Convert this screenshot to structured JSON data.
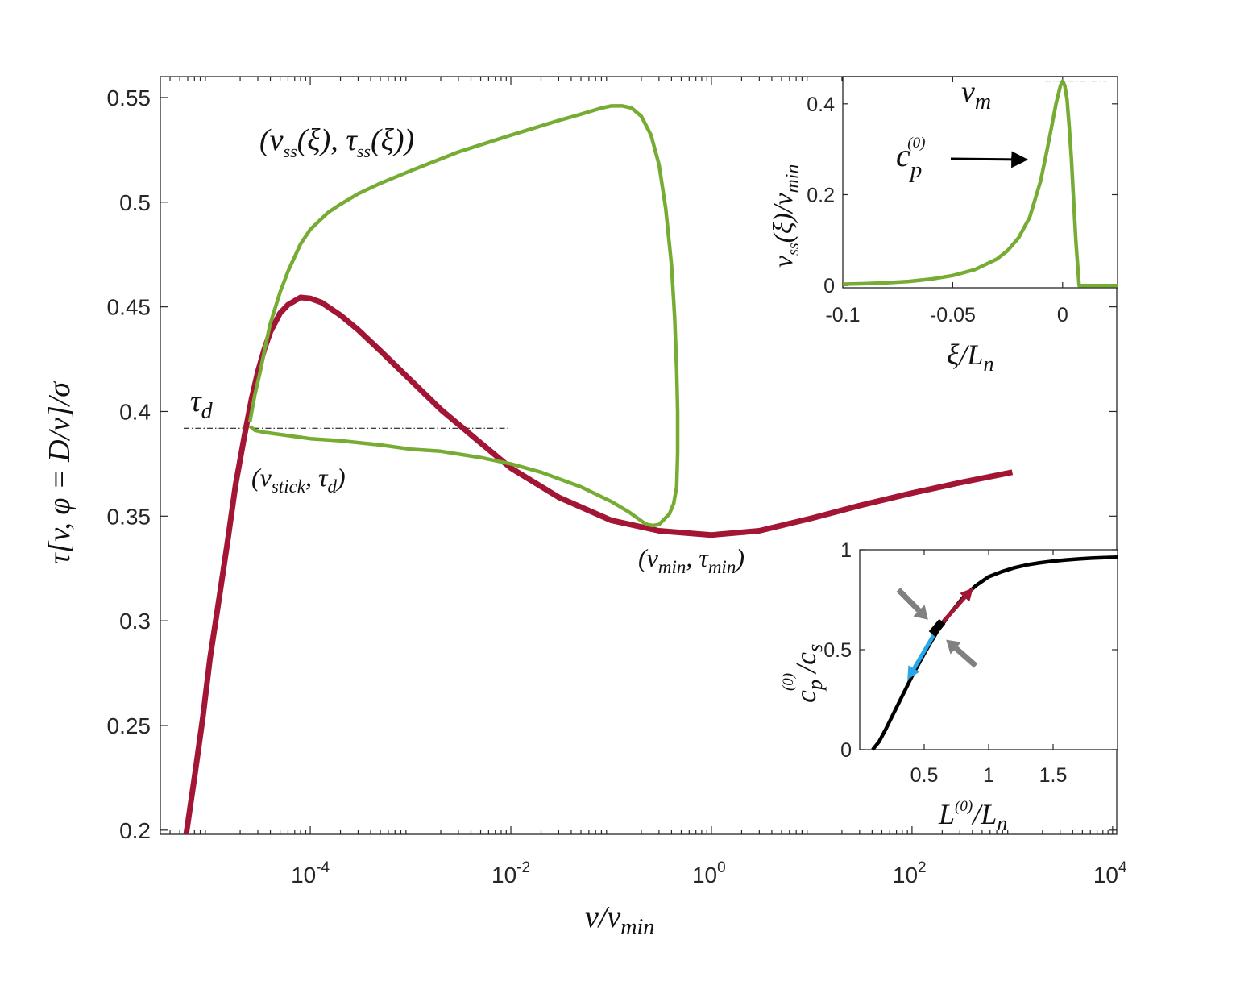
{
  "chart_data": [
    {
      "type": "line",
      "xscale": "log",
      "xlim": [
        3.2e-06,
        11000
      ],
      "ylim": [
        0.198,
        0.56
      ],
      "xlabel": "v/v_min",
      "ylabel": "τ[v, φ = D/v]/σ",
      "xticks": [
        0.0001,
        0.01,
        1,
        100,
        10000
      ],
      "xtick_labels": [
        {
          "base": "10",
          "exp": "-4"
        },
        {
          "base": "10",
          "exp": "-2"
        },
        {
          "base": "10",
          "exp": "0"
        },
        {
          "base": "10",
          "exp": "2"
        },
        {
          "base": "10",
          "exp": "4"
        }
      ],
      "yticks": [
        0.2,
        0.25,
        0.3,
        0.35,
        0.4,
        0.45,
        0.5,
        0.55
      ],
      "ytick_labels": [
        "0.2",
        "0.25",
        "0.3",
        "0.35",
        "0.4",
        "0.45",
        "0.5",
        "0.55"
      ],
      "grid": false,
      "series": [
        {
          "color": "#a31535",
          "x": [
            5.8e-06,
            7e-06,
            8.5e-06,
            1e-05,
            1.2e-05,
            1.5e-05,
            1.8e-05,
            2.2e-05,
            2.6e-05,
            3e-05,
            3.5e-05,
            4e-05,
            5e-05,
            6e-05,
            8e-05,
            0.0001,
            0.00013,
            0.0002,
            0.0003,
            0.0005,
            0.001,
            0.002,
            0.005,
            0.01,
            0.03,
            0.1,
            0.3,
            1,
            3,
            10,
            30,
            100,
            300,
            1000
          ],
          "y": [
            0.198,
            0.225,
            0.254,
            0.282,
            0.307,
            0.338,
            0.365,
            0.388,
            0.406,
            0.419,
            0.43,
            0.438,
            0.447,
            0.451,
            0.4545,
            0.454,
            0.452,
            0.446,
            0.439,
            0.429,
            0.415,
            0.401,
            0.385,
            0.373,
            0.359,
            0.348,
            0.343,
            0.341,
            0.343,
            0.349,
            0.355,
            0.361,
            0.366,
            0.371
          ]
        },
        {
          "color": "#76ac34",
          "x": [
            2.5e-05,
            2.8e-05,
            3.2e-05,
            3.6e-05,
            4e-05,
            5e-05,
            6e-05,
            8e-05,
            0.0001,
            0.00015,
            0.0002,
            0.0003,
            0.0005,
            0.001,
            0.003,
            0.01,
            0.03,
            0.05,
            0.08,
            0.1,
            0.13,
            0.16,
            0.2,
            0.25,
            0.3,
            0.35,
            0.4,
            0.43,
            0.45,
            0.46,
            0.46,
            0.45,
            0.42,
            0.38,
            0.33,
            0.3,
            0.26,
            0.23,
            0.21,
            0.15,
            0.1,
            0.05,
            0.02,
            0.01,
            0.005,
            0.002,
            0.001,
            0.0005,
            0.0002,
            0.0001,
            5e-05,
            3.5e-05,
            2.8e-05,
            2.5e-05
          ],
          "y": [
            0.395,
            0.408,
            0.42,
            0.432,
            0.442,
            0.457,
            0.467,
            0.48,
            0.487,
            0.495,
            0.499,
            0.504,
            0.509,
            0.515,
            0.524,
            0.532,
            0.539,
            0.542,
            0.545,
            0.546,
            0.546,
            0.545,
            0.541,
            0.532,
            0.518,
            0.497,
            0.47,
            0.445,
            0.42,
            0.4,
            0.38,
            0.364,
            0.356,
            0.351,
            0.348,
            0.346,
            0.3455,
            0.346,
            0.347,
            0.352,
            0.357,
            0.364,
            0.371,
            0.375,
            0.378,
            0.381,
            0.382,
            0.384,
            0.386,
            0.387,
            0.389,
            0.39,
            0.391,
            0.393
          ]
        }
      ],
      "reference_lines": [
        {
          "type": "horizontal",
          "y": 0.392,
          "x_range": [
            2.5e-05,
            0.01
          ],
          "style": "dash-dot"
        }
      ],
      "annotations": [
        {
          "text": "(v_ss(ξ), τ_ss(ξ))"
        },
        {
          "text": "τ_d"
        },
        {
          "text": "(v_stick, τ_d)"
        },
        {
          "text": "(v_min, τ_min)"
        }
      ]
    },
    {
      "type": "line",
      "xlim": [
        -0.1,
        0.025
      ],
      "ylim": [
        -0.005,
        0.46
      ],
      "xlabel": "ξ/L_n",
      "ylabel": "v_ss(ξ)/v_min",
      "xticks": [
        -0.1,
        -0.05,
        0
      ],
      "xtick_labels": [
        "-0.1",
        "-0.05",
        "0"
      ],
      "yticks": [
        0,
        0.2,
        0.4
      ],
      "ytick_labels": [
        "0",
        "0.2",
        "0.4"
      ],
      "grid": false,
      "series": [
        {
          "color": "#76ac34",
          "x": [
            -0.1,
            -0.09,
            -0.08,
            -0.07,
            -0.06,
            -0.05,
            -0.04,
            -0.03,
            -0.025,
            -0.02,
            -0.015,
            -0.01,
            -0.007,
            -0.005,
            -0.003,
            -0.001,
            0,
            0.001,
            0.002,
            0.003,
            0.004,
            0.005,
            0.006,
            0.0075,
            0.008,
            0.015,
            0.025
          ],
          "y": [
            0.003,
            0.004,
            0.006,
            0.009,
            0.014,
            0.022,
            0.035,
            0.058,
            0.077,
            0.105,
            0.15,
            0.23,
            0.3,
            0.35,
            0.4,
            0.44,
            0.45,
            0.44,
            0.41,
            0.35,
            0.28,
            0.19,
            0.1,
            0.0,
            0.0,
            0.0,
            0.0
          ]
        }
      ],
      "reference_lines": [
        {
          "type": "horizontal",
          "y": 0.45,
          "x_range": [
            -0.008,
            0.02
          ],
          "style": "dash-dot"
        }
      ],
      "annotations": [
        {
          "text": "v_m"
        },
        {
          "text": "c_p^(0)"
        }
      ]
    },
    {
      "type": "line",
      "xlim": [
        0,
        2
      ],
      "ylim": [
        0,
        1
      ],
      "xlabel": "L^(0)/L_n",
      "ylabel": "c_p^(0)/c_s",
      "xticks": [
        0.5,
        1,
        1.5
      ],
      "xtick_labels": [
        "0.5",
        "1",
        "1.5"
      ],
      "yticks": [
        0,
        0.5,
        1
      ],
      "ytick_labels": [
        "0",
        "0.5",
        "1"
      ],
      "grid": false,
      "series": [
        {
          "color": "#000000",
          "x": [
            0.1,
            0.15,
            0.2,
            0.3,
            0.4,
            0.5,
            0.6,
            0.7,
            0.8,
            0.9,
            1.0,
            1.1,
            1.2,
            1.3,
            1.4,
            1.5,
            1.6,
            1.7,
            1.8,
            1.9,
            2.0
          ],
          "y": [
            0.0,
            0.04,
            0.1,
            0.23,
            0.36,
            0.48,
            0.59,
            0.68,
            0.76,
            0.82,
            0.865,
            0.89,
            0.91,
            0.925,
            0.935,
            0.943,
            0.949,
            0.954,
            0.958,
            0.961,
            0.963
          ]
        }
      ],
      "marker": {
        "x": 0.6,
        "y": 0.61
      },
      "arrows": [
        {
          "color": "#a31535",
          "from": [
            0.62,
            0.62
          ],
          "to": [
            0.88,
            0.81
          ]
        },
        {
          "color": "#29a8e8",
          "from": [
            0.58,
            0.58
          ],
          "to": [
            0.37,
            0.35
          ]
        },
        {
          "color": "#808080",
          "from": [
            0.3,
            0.8
          ],
          "to": [
            0.53,
            0.65
          ]
        },
        {
          "color": "#808080",
          "from": [
            0.9,
            0.42
          ],
          "to": [
            0.67,
            0.55
          ]
        }
      ]
    }
  ]
}
